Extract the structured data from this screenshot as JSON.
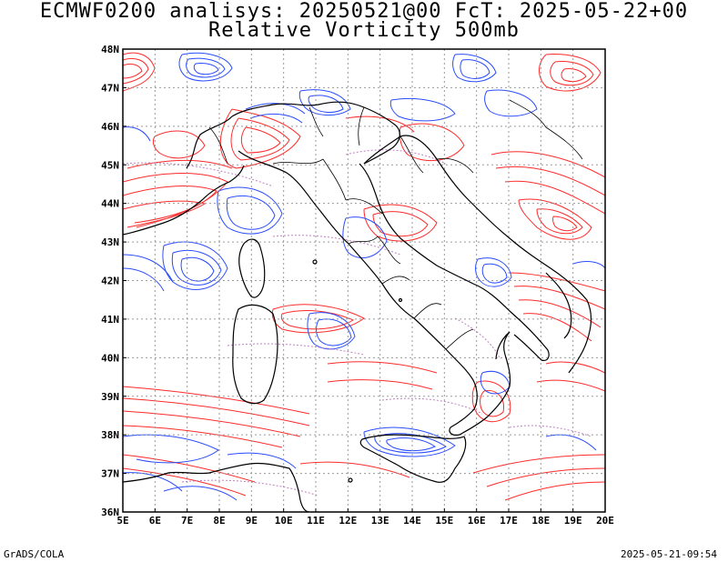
{
  "title_line1": "ECMWF0200 analisys: 20250521@00 FcT: 2025-05-22+00",
  "title_line2": "Relative Vorticity 500mb",
  "footer_left": "GrADS/COLA",
  "footer_right": "2025-05-21-09:54",
  "map": {
    "lon_range": [
      5,
      20
    ],
    "lat_range": [
      36,
      48
    ],
    "lon_labels": [
      "5E",
      "6E",
      "7E",
      "8E",
      "9E",
      "10E",
      "11E",
      "12E",
      "13E",
      "14E",
      "15E",
      "16E",
      "17E",
      "18E",
      "19E",
      "20E"
    ],
    "lat_labels": [
      "48N",
      "47N",
      "46N",
      "45N",
      "44N",
      "43N",
      "42N",
      "41N",
      "40N",
      "39N",
      "38N",
      "37N",
      "36N"
    ],
    "contour_colors": {
      "positive": "#ff2a2a",
      "negative": "#2a4cff",
      "zero": "#c080c0"
    }
  }
}
